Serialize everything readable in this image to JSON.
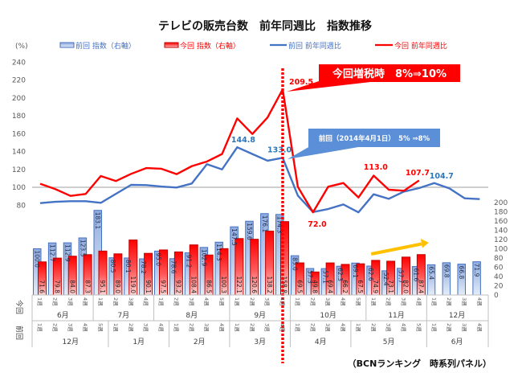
{
  "chart_data": {
    "type": "bar+line",
    "title": "テレビの販売台数　前年同週比　指数推移",
    "xlabel": "",
    "ylabel": "(%)",
    "y_left": {
      "label": "(%)",
      "range": [
        80,
        240
      ],
      "ticks": [
        80,
        100,
        120,
        140,
        160,
        180,
        200,
        220,
        240
      ]
    },
    "y_right": {
      "range": [
        0,
        200
      ],
      "ticks": [
        0,
        20,
        40,
        60,
        80,
        100,
        120,
        140,
        160,
        180,
        200
      ]
    },
    "grid": false,
    "reference_line": {
      "axis": "left",
      "value": 100,
      "color": "#bfbfbf"
    },
    "legend": {
      "placement": "top",
      "items": [
        {
          "label": "前回 指数（右軸）",
          "kind": "bar",
          "color": "#4472c4"
        },
        {
          "label": "今回 指数（右軸）",
          "kind": "bar",
          "color": "#ff0000"
        },
        {
          "label": "前回 前年同週比",
          "kind": "line",
          "color": "#4472c4"
        },
        {
          "label": "今回 前年同週比",
          "kind": "line",
          "color": "#ff0000"
        }
      ]
    },
    "x_axis": {
      "rows": [
        {
          "label": "今回",
          "months": [
            {
              "name": "6月",
              "weeks": [
                "1週",
                "2週",
                "3週",
                "4週"
              ]
            },
            {
              "name": "7月",
              "weeks": [
                "1週",
                "2週",
                "3週",
                "4週"
              ]
            },
            {
              "name": "8月",
              "weeks": [
                "1週",
                "2週",
                "3週",
                "4週",
                "5週"
              ]
            },
            {
              "name": "9月",
              "weeks": [
                "1週",
                "2週",
                "3週",
                "4週"
              ]
            },
            {
              "name": "10月",
              "weeks": [
                "1週",
                "2週",
                "3週",
                "4週",
                "5週"
              ]
            },
            {
              "name": "11月",
              "weeks": [
                "1週",
                "2週",
                "3週",
                "4週"
              ]
            },
            {
              "name": "12月",
              "weeks": [
                "1週",
                "2週",
                "3週",
                "4週"
              ]
            }
          ]
        },
        {
          "label": "前回",
          "months": [
            {
              "name": "12月",
              "weeks": [
                "1週",
                "2週",
                "3週",
                "4週",
                "5週"
              ]
            },
            {
              "name": "1月",
              "weeks": [
                "1週",
                "2週",
                "3週",
                "4週"
              ]
            },
            {
              "name": "2月",
              "weeks": [
                "1週",
                "2週",
                "3週",
                "4週"
              ]
            },
            {
              "name": "3月",
              "weeks": [
                "1週",
                "2週",
                "3週",
                "4週"
              ]
            },
            {
              "name": "4月",
              "weeks": [
                "1週",
                "2週",
                "3週",
                "4週"
              ]
            },
            {
              "name": "5月",
              "weeks": [
                "1週",
                "2週",
                "3週",
                "4週",
                "5週"
              ]
            },
            {
              "name": "6月",
              "weeks": [
                "1週",
                "2週",
                "3週",
                "4週"
              ]
            }
          ]
        }
      ]
    },
    "series": [
      {
        "name": "前回 指数（右軸）",
        "type": "bar",
        "axis": "right",
        "color": "#4472c4",
        "values": [
          100.0,
          112.7,
          112.9,
          123.5,
          183.1,
          80.5,
          80.1,
          78.2,
          95.0,
          78.6,
          91.2,
          102.9,
          114.3,
          147.5,
          159.6,
          176.1,
          174.3,
          85.0,
          57.3,
          57.1,
          62.3,
          69.1,
          62.6,
          52.4,
          57.7,
          61.6,
          65.4,
          69.8,
          66.8,
          71.9
        ]
      },
      {
        "name": "今回 指数（右軸）",
        "type": "bar",
        "axis": "right",
        "color": "#ff0000",
        "values": [
          71.6,
          79.8,
          84.0,
          87.3,
          95.1,
          89.0,
          119.0,
          90.1,
          97.5,
          93.2,
          108.4,
          86.5,
          100.3,
          122.1,
          120.6,
          138.2,
          158.8,
          69.5,
          49.8,
          69.4,
          66.2,
          67.5,
          74.9,
          73.1,
          82.0,
          87.4
        ]
      },
      {
        "name": "前回 前年同週比",
        "type": "line",
        "axis": "left",
        "color": "#4472c4",
        "values": [
          82.3,
          83.8,
          84.4,
          84.4,
          82.6,
          92.7,
          102.7,
          102.4,
          100.8,
          99.7,
          104.2,
          125.8,
          120.0,
          144.8,
          137.2,
          129.7,
          133.0,
          90.7,
          72.3,
          75.7,
          80.8,
          72.0,
          92.2,
          87.1,
          95.2,
          99.1,
          104.7,
          98.8,
          87.7,
          86.8
        ]
      },
      {
        "name": "今回 前年同週比",
        "type": "line",
        "axis": "left",
        "color": "#ff0000",
        "values": [
          103.9,
          98.0,
          90.4,
          92.5,
          112.6,
          107.0,
          115.0,
          121.5,
          120.7,
          114.7,
          123.6,
          128.8,
          137.2,
          177.0,
          159.6,
          178.0,
          209.5,
          100.5,
          72.0,
          100.6,
          104.8,
          88.6,
          113.0,
          97.3,
          96.1,
          107.7
        ]
      }
    ],
    "point_labels": [
      {
        "series": 3,
        "index": 16,
        "text": "209.5"
      },
      {
        "series": 2,
        "index": 13,
        "text": "144.8"
      },
      {
        "series": 2,
        "index": 16,
        "text": "133.0"
      },
      {
        "series": 3,
        "index": 18,
        "text": "72.0"
      },
      {
        "series": 3,
        "index": 22,
        "text": "113.0"
      },
      {
        "series": 3,
        "index": 25,
        "text": "107.7"
      },
      {
        "series": 2,
        "index": 26,
        "text": "104.7"
      }
    ],
    "tax_increase_marker": {
      "index": 16,
      "style": "dotted",
      "color": "#ff0000"
    },
    "annotations": [
      {
        "text": "今回増税時　8%⇒10%",
        "color": "#ff0000",
        "target_series": 3,
        "target_index": 16
      },
      {
        "text": "前回（2014年4月1日）　5% ⇒8%",
        "color": "#5b8fd7",
        "target_series": 2,
        "target_index": 16
      }
    ],
    "trend_arrow": {
      "from_index": 22,
      "to_index": 25,
      "color": "#ffc000",
      "direction": "up"
    },
    "source": "（BCNランキング　時系列パネル）"
  }
}
